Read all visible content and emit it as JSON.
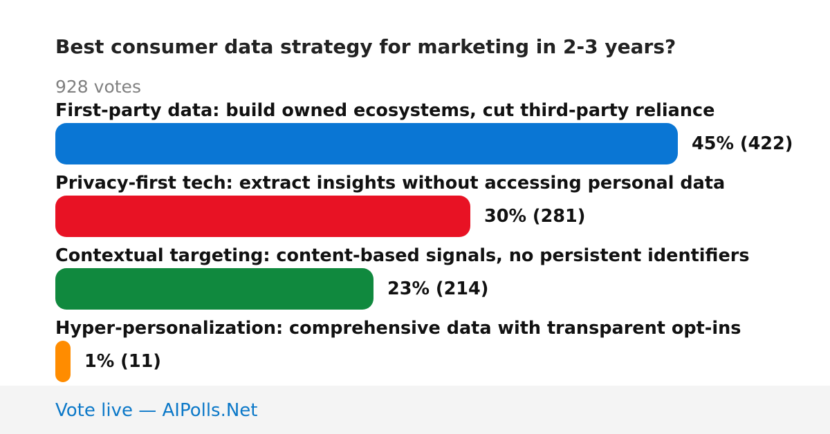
{
  "poll": {
    "question": "Best consumer data strategy for marketing in 2-3 years?",
    "votes_label": "928 votes"
  },
  "chart_data": {
    "type": "bar",
    "orientation": "horizontal",
    "title": "Best consumer data strategy for marketing in 2-3 years?",
    "categories": [
      "First-party data: build owned ecosystems, cut third-party reliance",
      "Privacy-first tech: extract insights without accessing personal data",
      "Contextual targeting: content-based signals, no persistent identifiers",
      "Hyper-personalization: comprehensive data with transparent opt-ins"
    ],
    "values": [
      45,
      30,
      23,
      1
    ],
    "counts": [
      422,
      281,
      214,
      11
    ],
    "value_labels": [
      "45% (422)",
      "30% (281)",
      "23% (214)",
      "1% (11)"
    ],
    "colors": [
      "#0a76d4",
      "#e81224",
      "#10893e",
      "#ff8c00"
    ],
    "unit": "%",
    "total_votes": 928
  },
  "footer": {
    "link_text": "Vote live — AIPolls.Net"
  }
}
